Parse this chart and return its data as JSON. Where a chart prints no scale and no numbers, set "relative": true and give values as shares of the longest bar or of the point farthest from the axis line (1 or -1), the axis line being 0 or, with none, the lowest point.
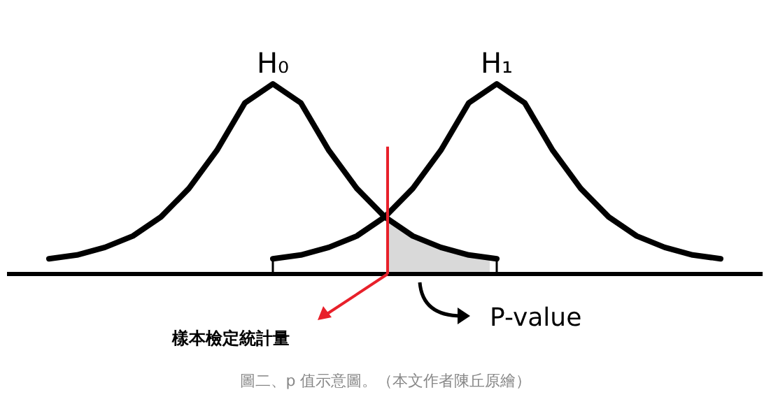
{
  "chart_data": {
    "type": "line",
    "relative": true,
    "categories": [
      null,
      null,
      null,
      null,
      null,
      null,
      null,
      null,
      null,
      null,
      null,
      null,
      null,
      null,
      null,
      null,
      null,
      null,
      null,
      null,
      null,
      null,
      null,
      null,
      null
    ],
    "series": [
      {
        "name": "H₀",
        "color": "#000000",
        "values": [
          0.08,
          0.1,
          0.14,
          0.2,
          0.3,
          0.45,
          0.65,
          0.9,
          1,
          0.9,
          0.65,
          0.45,
          0.3,
          0.2,
          0.14,
          0.1,
          0.08,
          null,
          null,
          null,
          null,
          null,
          null,
          null,
          null
        ]
      },
      {
        "name": "H₁",
        "color": "#000000",
        "values": [
          null,
          null,
          null,
          null,
          null,
          null,
          null,
          null,
          0.08,
          0.1,
          0.14,
          0.2,
          0.3,
          0.45,
          0.65,
          0.9,
          1,
          0.9,
          0.65,
          0.45,
          0.3,
          0.2,
          0.14,
          0.1,
          0.08
        ]
      }
    ],
    "annotations": [
      "樣本檢定統計量",
      "P-value",
      "圖二、p 值示意圖。（本文作者陳丘原繪）"
    ]
  }
}
